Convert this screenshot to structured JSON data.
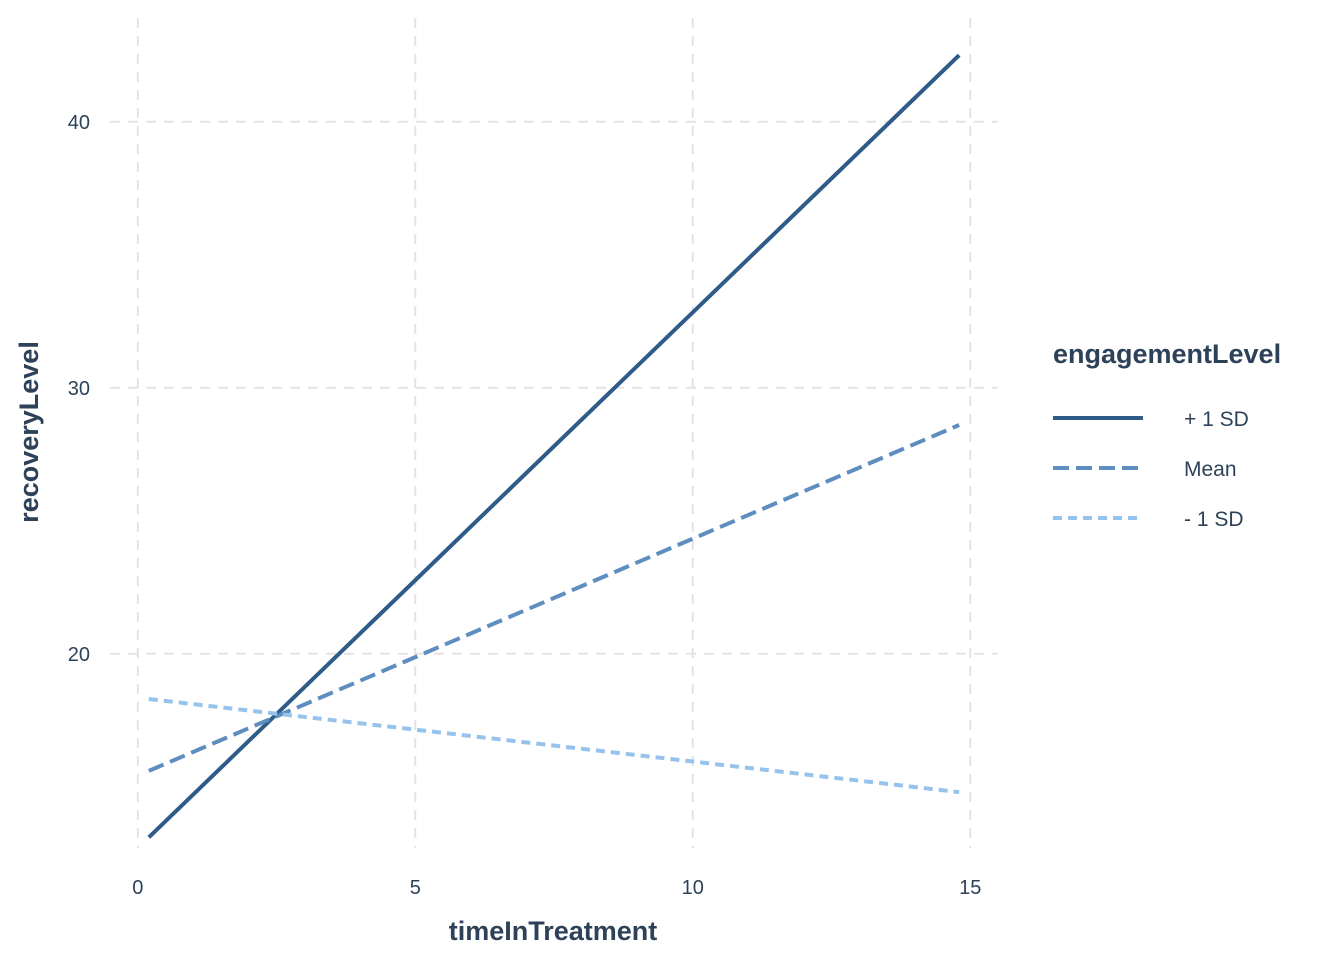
{
  "chart_data": {
    "type": "line",
    "title": "",
    "xlabel": "timeInTreatment",
    "ylabel": "recoveryLevel",
    "xlim": [
      -0.5,
      15.5
    ],
    "ylim": [
      12.7,
      43.9
    ],
    "x_ticks": [
      0,
      5,
      10,
      15
    ],
    "y_ticks": [
      20,
      30,
      40
    ],
    "grid": true,
    "legend": {
      "title": "engagementLevel",
      "position": "right"
    },
    "series": [
      {
        "name": "+ 1 SD",
        "color": "#2e5b87",
        "linestyle": "solid",
        "x": [
          0.2,
          14.8
        ],
        "y": [
          13.1,
          42.5
        ]
      },
      {
        "name": "Mean",
        "color": "#5d8ebf",
        "linestyle": "dashed",
        "x": [
          0.2,
          14.8
        ],
        "y": [
          15.6,
          28.6
        ]
      },
      {
        "name": "- 1 SD",
        "color": "#95c3ec",
        "linestyle": "dotted",
        "x": [
          0.2,
          14.8
        ],
        "y": [
          18.3,
          14.8
        ]
      }
    ]
  }
}
